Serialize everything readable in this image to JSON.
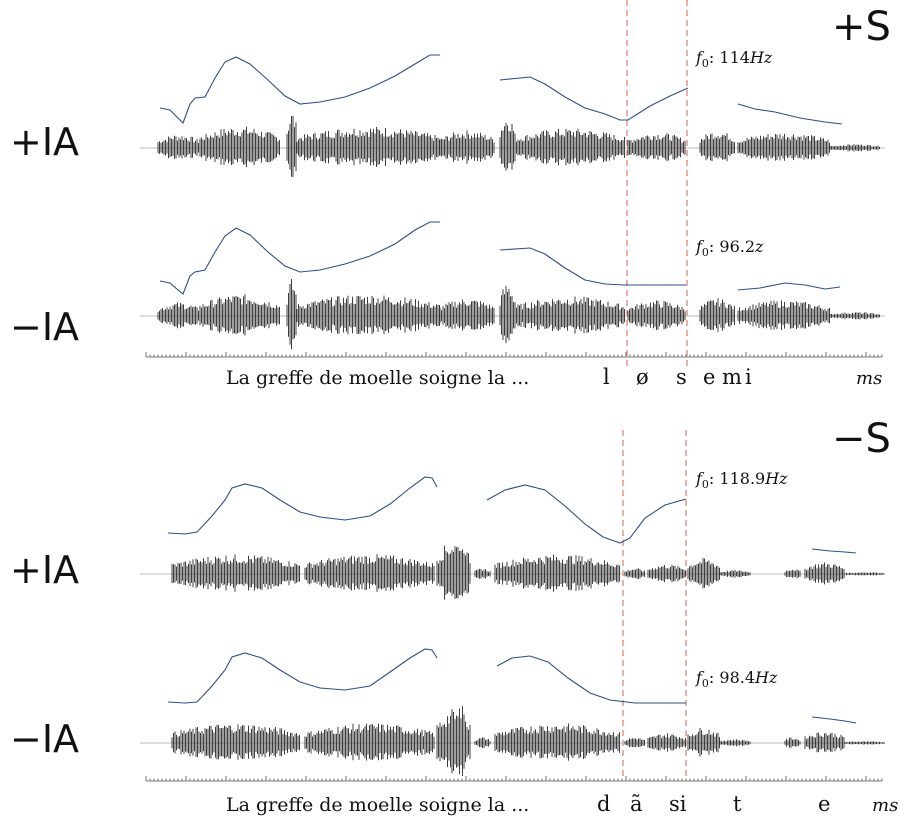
{
  "panels": [
    {
      "id": "plus-s",
      "condition_label": "+S",
      "tracks": [
        {
          "ia_label": "+IA",
          "f0_prefix": "f",
          "f0_sub": "0",
          "f0_value": ": 114",
          "f0_unit": "Hz"
        },
        {
          "ia_label": "−IA",
          "f0_prefix": "f",
          "f0_sub": "0",
          "f0_value": ": 96.2",
          "f0_unit": "z"
        }
      ],
      "sentence": "La greffe de moelle soigne la ...",
      "phonemes": [
        "l",
        "ø",
        "s",
        "e",
        "m",
        "i"
      ],
      "axis_unit": "ms"
    },
    {
      "id": "minus-s",
      "condition_label": "−S",
      "tracks": [
        {
          "ia_label": "+IA",
          "f0_prefix": "f",
          "f0_sub": "0",
          "f0_value": ": 118.9",
          "f0_unit": "Hz"
        },
        {
          "ia_label": "−IA",
          "f0_prefix": "f",
          "f0_sub": "0",
          "f0_value": ": 98.4",
          "f0_unit": "Hz"
        }
      ],
      "sentence": "La greffe de moelle soigne la ...",
      "phonemes": [
        "d",
        "ã",
        "si",
        "t",
        "e"
      ],
      "axis_unit": "ms"
    }
  ],
  "colors": {
    "pitch_line": "#2f4f86",
    "waveform": "#2a2a2a",
    "boundary": "#e07a6a",
    "axis": "#555555"
  }
}
